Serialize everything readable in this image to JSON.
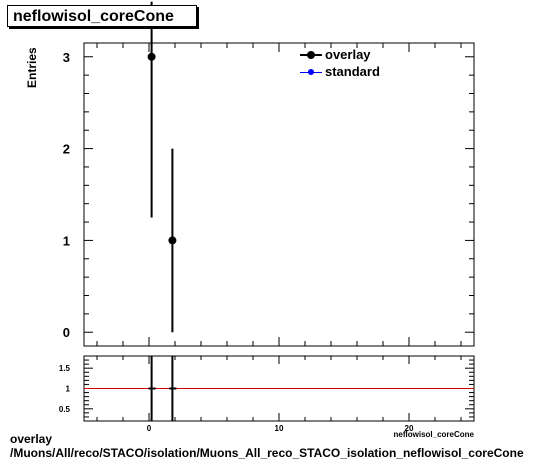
{
  "chart_data": [
    {
      "type": "scatter",
      "title": "neflowisol_coreCone",
      "ylabel": "Entries",
      "xlim": [
        -5,
        25
      ],
      "ylim": [
        -0.15,
        3.15
      ],
      "yticks": [
        0,
        1,
        2,
        3
      ],
      "series": [
        {
          "name": "overlay",
          "color": "#000000",
          "points": [
            {
              "x": 0.2,
              "y": 3,
              "err_low": 1.75,
              "err_high": 0.6
            },
            {
              "x": 1.8,
              "y": 1,
              "err_low": 1.0,
              "err_high": 1.0
            }
          ]
        },
        {
          "name": "standard",
          "color": "#0000ff",
          "points": []
        }
      ],
      "legend_position": "top-right"
    },
    {
      "type": "line",
      "xlim": [
        -5,
        25
      ],
      "ylim": [
        0.2,
        1.8
      ],
      "yticks": [
        0.5,
        1,
        1.5
      ],
      "ytick_labels": [
        "0.5",
        "1",
        "1.5"
      ],
      "xticks": [
        0,
        10,
        20
      ],
      "xtick_labels": [
        "0",
        "10",
        "20"
      ],
      "xlabel": "neflowisol_coreCone",
      "reference_line": {
        "y": 1,
        "color": "#cc0000"
      },
      "markers": [
        {
          "x": 0.2,
          "y": 1
        },
        {
          "x": 1.8,
          "y": 1
        }
      ]
    }
  ],
  "footer": {
    "line1": "overlay",
    "line2": "/Muons/All/reco/STACO/isolation/Muons_All_reco_STACO_isolation_neflowisol_coreCone"
  }
}
